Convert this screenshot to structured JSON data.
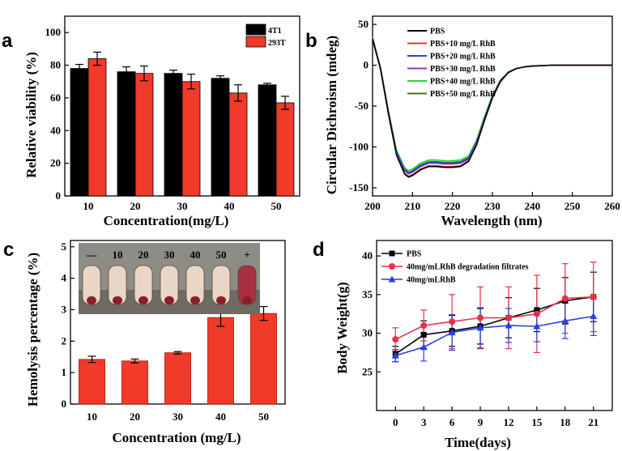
{
  "colors": {
    "black_bar": "#000000",
    "red_bar": "#f03a2a",
    "pbs": "#000000",
    "rhb10": "#e8303a",
    "rhb20": "#2a3fe0",
    "rhb30": "#9933cc",
    "rhb40": "#22dd22",
    "rhb50": "#556b2f",
    "filtrates": "#e8304a",
    "rhb": "#2a3fe0",
    "tube_light": "#ead6c6",
    "tube_dark": "#a83040"
  },
  "chart_data": [
    {
      "panel": "a",
      "type": "bar",
      "xlabel": "Concentration(mg/L)",
      "ylabel": "Relative viability (%)",
      "ylim": [
        0,
        110
      ],
      "yticks": [
        0,
        20,
        40,
        60,
        80,
        100
      ],
      "categories": [
        "10",
        "20",
        "30",
        "40",
        "50"
      ],
      "legend_position": "top-right",
      "series": [
        {
          "name": "4T1",
          "color": "#000000",
          "values": [
            78,
            76,
            75,
            72,
            68
          ],
          "errors": [
            2.5,
            3,
            2,
            1.5,
            1
          ]
        },
        {
          "name": "293T",
          "color": "#f03a2a",
          "values": [
            84,
            75,
            70,
            63,
            57
          ],
          "errors": [
            4,
            4.5,
            4.5,
            5,
            4
          ]
        }
      ]
    },
    {
      "panel": "b",
      "type": "line",
      "xlabel": "Wavelength (nm)",
      "ylabel": "Circular Dichroism (mdeg)",
      "xlim": [
        200,
        260
      ],
      "ylim": [
        -160,
        60
      ],
      "xticks": [
        200,
        210,
        220,
        230,
        240,
        250,
        260
      ],
      "yticks": [
        -150,
        -100,
        -50,
        0,
        50
      ],
      "legend_position": "top-right",
      "series": [
        {
          "name": "PBS",
          "color": "#000000",
          "x": [
            200,
            202,
            204,
            206,
            208,
            209,
            210,
            212,
            214,
            216,
            218,
            220,
            222,
            224,
            226,
            228,
            230,
            232,
            234,
            236,
            238,
            240,
            245,
            250,
            255,
            260
          ],
          "y": [
            32,
            -5,
            -60,
            -110,
            -133,
            -137,
            -135,
            -128,
            -124,
            -124,
            -125,
            -125,
            -124,
            -118,
            -98,
            -68,
            -40,
            -20,
            -9,
            -4,
            -2,
            -1,
            0,
            0,
            0,
            0
          ]
        },
        {
          "name": "PBS+10 mg/L RhB",
          "color": "#e8303a",
          "x": [
            200,
            202,
            204,
            206,
            208,
            209,
            210,
            212,
            214,
            216,
            218,
            220,
            222,
            224,
            226,
            228,
            230,
            232,
            234,
            236,
            238,
            240,
            245,
            250,
            255,
            260
          ],
          "y": [
            32,
            -5,
            -60,
            -109,
            -132,
            -136,
            -134,
            -127,
            -123,
            -123,
            -124,
            -124,
            -123,
            -117,
            -97,
            -67,
            -40,
            -20,
            -9,
            -4,
            -2,
            -1,
            0,
            0,
            0,
            0
          ]
        },
        {
          "name": "PBS+20 mg/L RhB",
          "color": "#2a3fe0",
          "x": [
            200,
            202,
            204,
            206,
            208,
            209,
            210,
            212,
            214,
            216,
            218,
            220,
            222,
            224,
            226,
            228,
            230,
            232,
            234,
            236,
            238,
            240,
            245,
            250,
            255,
            260
          ],
          "y": [
            33,
            -4,
            -58,
            -106,
            -128,
            -132,
            -130,
            -123,
            -119,
            -119,
            -120,
            -120,
            -119,
            -114,
            -94,
            -65,
            -38,
            -19,
            -9,
            -4,
            -2,
            -1,
            0,
            0,
            0,
            0
          ]
        },
        {
          "name": "PBS+30 mg/L RhB",
          "color": "#9933cc",
          "x": [
            200,
            202,
            204,
            206,
            208,
            209,
            210,
            212,
            214,
            216,
            218,
            220,
            222,
            224,
            226,
            228,
            230,
            232,
            234,
            236,
            238,
            240,
            245,
            250,
            255,
            260
          ],
          "y": [
            33,
            -4,
            -58,
            -107,
            -129,
            -133,
            -131,
            -124,
            -120,
            -120,
            -121,
            -121,
            -120,
            -115,
            -95,
            -66,
            -39,
            -19,
            -9,
            -4,
            -2,
            -1,
            0,
            0,
            0,
            0
          ]
        },
        {
          "name": "PBS+40 mg/L RhB",
          "color": "#22dd22",
          "x": [
            200,
            202,
            204,
            206,
            208,
            209,
            210,
            212,
            214,
            216,
            218,
            220,
            222,
            224,
            226,
            228,
            230,
            232,
            234,
            236,
            238,
            240,
            245,
            250,
            255,
            260
          ],
          "y": [
            34,
            -3,
            -56,
            -104,
            -125,
            -129,
            -127,
            -120,
            -116,
            -116,
            -117,
            -117,
            -116,
            -111,
            -92,
            -63,
            -37,
            -18,
            -8,
            -4,
            -2,
            -1,
            0,
            0,
            0,
            0
          ]
        },
        {
          "name": "PBS+50 mg/L RhB",
          "color": "#556b2f",
          "x": [
            200,
            202,
            204,
            206,
            208,
            209,
            210,
            212,
            214,
            216,
            218,
            220,
            222,
            224,
            226,
            228,
            230,
            232,
            234,
            236,
            238,
            240,
            245,
            250,
            255,
            260
          ],
          "y": [
            33,
            -4,
            -57,
            -106,
            -127,
            -131,
            -129,
            -122,
            -118,
            -118,
            -119,
            -119,
            -118,
            -113,
            -94,
            -64,
            -38,
            -19,
            -9,
            -4,
            -2,
            -1,
            0,
            0,
            0,
            0
          ]
        }
      ]
    },
    {
      "panel": "c",
      "type": "bar",
      "xlabel": "Concentration (mg/L)",
      "ylabel": "Hemolysis percentage (%)",
      "ylim": [
        0,
        5.2
      ],
      "yticks": [
        0,
        1,
        2,
        3,
        4,
        5
      ],
      "categories": [
        "10",
        "20",
        "30",
        "40",
        "50"
      ],
      "series": [
        {
          "name": "Hemolysis",
          "color": "#f03a2a",
          "values": [
            1.42,
            1.37,
            1.63,
            2.75,
            2.88
          ],
          "errors": [
            0.1,
            0.06,
            0.04,
            0.28,
            0.22
          ]
        }
      ],
      "inset_labels": [
        "—",
        "10",
        "20",
        "30",
        "40",
        "50",
        "+"
      ]
    },
    {
      "panel": "d",
      "type": "line",
      "xlabel": "Time(days)",
      "ylabel": "Body Weight(g)",
      "xlim": [
        -2,
        23
      ],
      "ylim": [
        20,
        42
      ],
      "xticks": [
        0,
        3,
        6,
        9,
        12,
        15,
        18,
        21
      ],
      "yticks": [
        25,
        30,
        35,
        40
      ],
      "legend_position": "top-left",
      "series": [
        {
          "name": "PBS",
          "color": "#000000",
          "marker": "square",
          "x": [
            0,
            3,
            6,
            9,
            12,
            15,
            18,
            21
          ],
          "y": [
            27.3,
            29.8,
            30.3,
            30.9,
            32.0,
            33.0,
            34.2,
            34.7
          ],
          "errors": [
            1,
            1.8,
            2.0,
            2.3,
            2.6,
            2.8,
            3.0,
            3.2
          ]
        },
        {
          "name": "40mg/mLRhB degradation filtrates",
          "color": "#e8304a",
          "marker": "circle",
          "x": [
            0,
            3,
            6,
            9,
            12,
            15,
            18,
            21
          ],
          "y": [
            29.2,
            31.0,
            31.5,
            32.0,
            32.0,
            32.5,
            34.5,
            34.7
          ],
          "errors": [
            1.5,
            2.0,
            3.5,
            4.0,
            4.0,
            5.0,
            4.5,
            4.5
          ]
        },
        {
          "name": "40mg/mLRhB",
          "color": "#2a3fe0",
          "marker": "triangle",
          "x": [
            0,
            3,
            6,
            9,
            12,
            15,
            18,
            21
          ],
          "y": [
            27.1,
            28.2,
            30.1,
            30.7,
            31.0,
            30.9,
            31.6,
            32.2
          ],
          "errors": [
            0.8,
            1.8,
            2.3,
            2.6,
            2.2,
            2.0,
            2.3,
            2.5
          ]
        }
      ]
    }
  ]
}
